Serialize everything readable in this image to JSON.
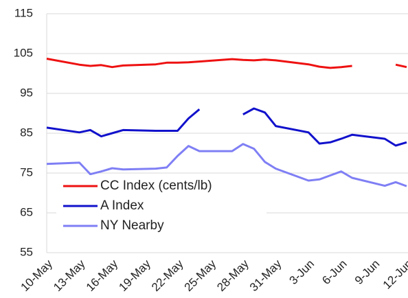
{
  "chart_data": {
    "type": "line",
    "x": [
      "10-May",
      "13-May",
      "14-May",
      "15-May",
      "16-May",
      "17-May",
      "20-May",
      "21-May",
      "22-May",
      "23-May",
      "24-May",
      "27-May",
      "28-May",
      "29-May",
      "30-May",
      "31-May",
      "3-Jun",
      "4-Jun",
      "5-Jun",
      "6-Jun",
      "7-Jun",
      "10-Jun",
      "11-Jun",
      "12-Jun"
    ],
    "xticks": [
      "10-May",
      "13-May",
      "16-May",
      "19-May",
      "22-May",
      "25-May",
      "28-May",
      "31-May",
      "3-Jun",
      "6-Jun",
      "9-Jun",
      "12-Jun"
    ],
    "ylim": [
      55,
      115
    ],
    "yticks": [
      55,
      65,
      75,
      85,
      95,
      105,
      115
    ],
    "grid": true,
    "legend": "lower-left",
    "series": [
      {
        "name": "CC Index (cents/lb)",
        "color": "#ee1111",
        "values": [
          103.7,
          102.2,
          101.9,
          102.1,
          101.6,
          102.0,
          102.3,
          102.7,
          102.7,
          102.8,
          103.0,
          103.6,
          103.4,
          103.3,
          103.5,
          103.3,
          102.3,
          101.7,
          101.4,
          101.6,
          101.9,
          null,
          102.2,
          101.6
        ]
      },
      {
        "name": "A Index",
        "color": "#1111cc",
        "values": [
          86.4,
          85.2,
          85.8,
          84.2,
          85.0,
          85.8,
          85.6,
          85.6,
          85.6,
          88.7,
          91.0,
          null,
          89.7,
          91.2,
          90.2,
          86.8,
          85.2,
          82.4,
          82.7,
          83.6,
          84.6,
          83.6,
          81.9,
          82.7
        ]
      },
      {
        "name": "NY Nearby",
        "color": "#7f7ff5",
        "values": [
          77.3,
          77.6,
          74.7,
          75.4,
          76.2,
          75.9,
          76.1,
          76.4,
          79.3,
          81.8,
          80.5,
          80.5,
          82.3,
          81.1,
          77.8,
          76.1,
          73.1,
          73.4,
          74.4,
          75.4,
          73.8,
          71.8,
          72.7,
          71.7
        ]
      }
    ]
  }
}
